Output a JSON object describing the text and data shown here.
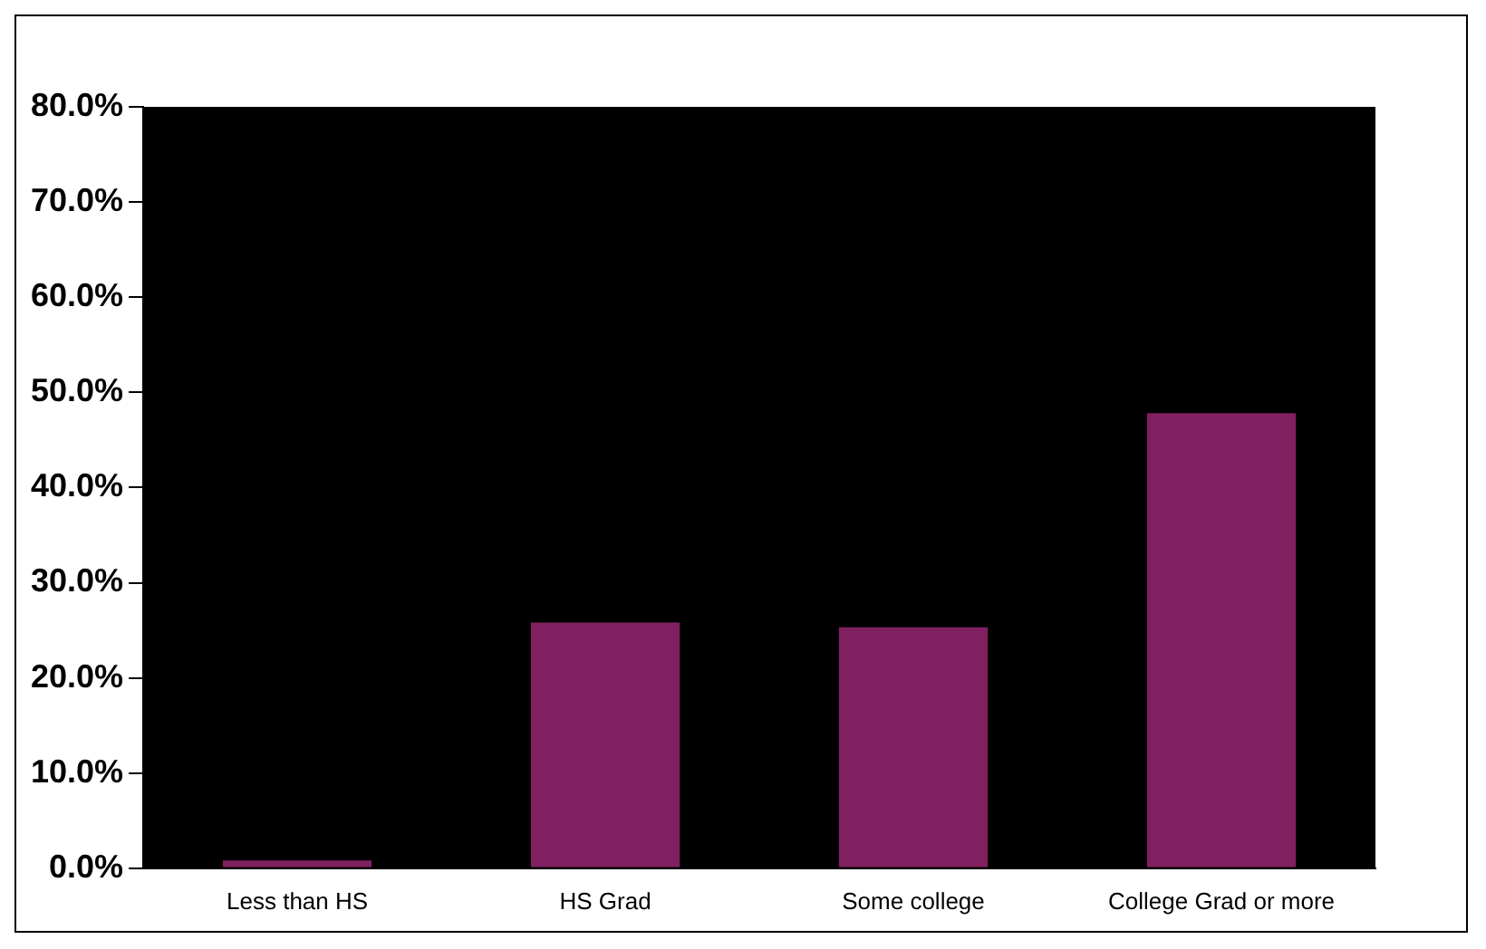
{
  "chart_data": {
    "type": "bar",
    "categories": [
      "Less than HS",
      "HS Grad",
      "Some college",
      "College Grad or more"
    ],
    "values": [
      1.0,
      26.0,
      25.5,
      48.0
    ],
    "color": "#802060",
    "ylim": [
      0,
      80
    ],
    "yticks": [
      {
        "value": 0,
        "label": "0.0%"
      },
      {
        "value": 10,
        "label": "10.0%"
      },
      {
        "value": 20,
        "label": "20.0%"
      },
      {
        "value": 30,
        "label": "30.0%"
      },
      {
        "value": 40,
        "label": "40.0%"
      },
      {
        "value": 50,
        "label": "50.0%"
      },
      {
        "value": 60,
        "label": "60.0%"
      },
      {
        "value": 70,
        "label": "70.0%"
      },
      {
        "value": 80,
        "label": "80.0%"
      }
    ],
    "grid": false,
    "legend": false
  }
}
